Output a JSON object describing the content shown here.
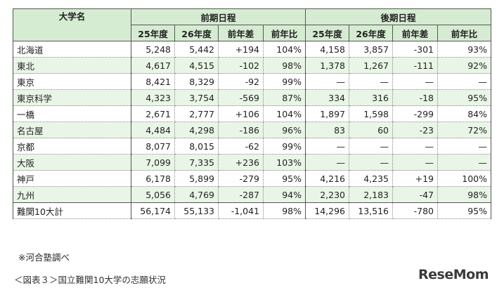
{
  "header": {
    "university": "大学名",
    "first_period": "前期日程",
    "second_period": "後期日程",
    "cols": [
      "25年度",
      "26年度",
      "前年差",
      "前年比",
      "25年度",
      "26年度",
      "前年差",
      "前年比"
    ]
  },
  "rows": [
    {
      "name": "北海道",
      "v": [
        "5,248",
        "5,442",
        "+194",
        "104%",
        "4,158",
        "3,857",
        "-301",
        "93%"
      ]
    },
    {
      "name": "東北",
      "v": [
        "4,617",
        "4,515",
        "-102",
        "98%",
        "1,378",
        "1,267",
        "-111",
        "92%"
      ]
    },
    {
      "name": "東京",
      "v": [
        "8,421",
        "8,329",
        "-92",
        "99%",
        "—",
        "—",
        "—",
        "—"
      ]
    },
    {
      "name": "東京科学",
      "v": [
        "4,323",
        "3,754",
        "-569",
        "87%",
        "334",
        "316",
        "-18",
        "95%"
      ]
    },
    {
      "name": "一橋",
      "v": [
        "2,671",
        "2,777",
        "+106",
        "104%",
        "1,897",
        "1,598",
        "-299",
        "84%"
      ]
    },
    {
      "name": "名古屋",
      "v": [
        "4,484",
        "4,298",
        "-186",
        "96%",
        "83",
        "60",
        "-23",
        "72%"
      ]
    },
    {
      "name": "京都",
      "v": [
        "8,077",
        "8,015",
        "-62",
        "99%",
        "—",
        "—",
        "—",
        "—"
      ]
    },
    {
      "name": "大阪",
      "v": [
        "7,099",
        "7,335",
        "+236",
        "103%",
        "—",
        "—",
        "—",
        "—"
      ]
    },
    {
      "name": "神戸",
      "v": [
        "6,178",
        "5,899",
        "-279",
        "95%",
        "4,216",
        "4,235",
        "+19",
        "100%"
      ]
    },
    {
      "name": "九州",
      "v": [
        "5,056",
        "4,769",
        "-287",
        "94%",
        "2,230",
        "2,183",
        "-47",
        "98%"
      ]
    },
    {
      "name": "難関10大計",
      "v": [
        "56,174",
        "55,133",
        "-1,041",
        "98%",
        "14,296",
        "13,516",
        "-780",
        "95%"
      ]
    }
  ],
  "note": "※河合塾調べ",
  "caption": "＜図表３＞国立難関10大学の志願状況",
  "logo": "ReseMom"
}
